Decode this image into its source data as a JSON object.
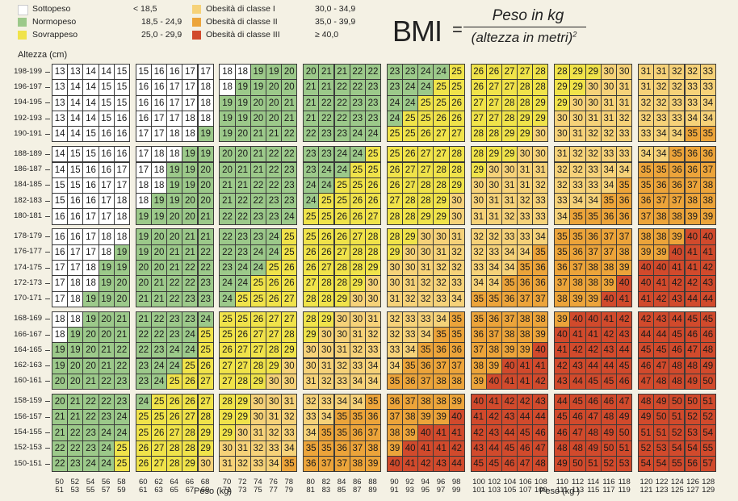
{
  "legend": [
    {
      "label": "Sottopeso",
      "range": "< 18,5",
      "color": "#ffffff"
    },
    {
      "label": "Normopeso",
      "range": "18,5 - 24,9",
      "color": "#9cc98a"
    },
    {
      "label": "Sovrappeso",
      "range": "25,0 - 29,9",
      "color": "#f0e34a"
    },
    {
      "label": "Obesità di classe I",
      "range": "30,0 - 34,9",
      "color": "#f6d279"
    },
    {
      "label": "Obesità di classe II",
      "range": "35,0 - 39,9",
      "color": "#eca43a"
    },
    {
      "label": "Obesità di classe III",
      "range": "≥ 40,0",
      "color": "#d14a2c"
    }
  ],
  "formula": {
    "bmi": "BMI",
    "equals": "=",
    "numerator": "Peso in kg",
    "denominator": "(altezza in metri)",
    "exponent": "2"
  },
  "chart_data": {
    "type": "heatmap",
    "ylabel": "Altezza (cm)",
    "xlabel_left": "Peso (kg)",
    "xlabel_right": "Peso (kg )",
    "row_labels": [
      "198-199",
      "196-197",
      "194-195",
      "192-193",
      "190-191",
      "188-189",
      "186-187",
      "184-185",
      "182-183",
      "180-181",
      "178-179",
      "176-177",
      "174-175",
      "172-173",
      "170-171",
      "168-169",
      "166-167",
      "164-165",
      "162-163",
      "160-161",
      "158-159",
      "156-157",
      "154-155",
      "152-153",
      "150-151"
    ],
    "col_labels_top": [
      "50",
      "52",
      "54",
      "56",
      "58",
      "60",
      "62",
      "64",
      "66",
      "68",
      "70",
      "72",
      "74",
      "76",
      "78",
      "80",
      "82",
      "84",
      "86",
      "88",
      "90",
      "92",
      "94",
      "96",
      "98",
      "100",
      "102",
      "104",
      "106",
      "108",
      "110",
      "112",
      "114",
      "116",
      "118",
      "120",
      "122",
      "124",
      "126",
      "128"
    ],
    "col_labels_bottom": [
      "51",
      "53",
      "55",
      "57",
      "59",
      "61",
      "63",
      "65",
      "67",
      "69",
      "71",
      "73",
      "75",
      "77",
      "79",
      "81",
      "83",
      "85",
      "87",
      "89",
      "91",
      "93",
      "95",
      "97",
      "99",
      "101",
      "103",
      "105",
      "107",
      "109",
      "111",
      "113",
      "115",
      "117",
      "119",
      "121",
      "123",
      "125",
      "127",
      "129"
    ],
    "bmi_categories": [
      {
        "name": "Sottopeso",
        "max": 18.5
      },
      {
        "name": "Normopeso",
        "max": 25
      },
      {
        "name": "Sovrappeso",
        "max": 30
      },
      {
        "name": "Obesità di classe I",
        "max": 35
      },
      {
        "name": "Obesità di classe II",
        "max": 40
      },
      {
        "name": "Obesità di classe III",
        "max": null
      }
    ],
    "values": [
      [
        13,
        13,
        14,
        14,
        15,
        15,
        16,
        16,
        17,
        17,
        18,
        18,
        19,
        19,
        20,
        20,
        21,
        21,
        22,
        22,
        23,
        23,
        24,
        24,
        25,
        26,
        26,
        27,
        27,
        28,
        28,
        29,
        29,
        30,
        30,
        31,
        31,
        32,
        32,
        33
      ],
      [
        13,
        14,
        14,
        15,
        15,
        16,
        16,
        17,
        17,
        18,
        18,
        19,
        19,
        20,
        20,
        21,
        21,
        22,
        22,
        23,
        23,
        24,
        24,
        25,
        25,
        26,
        27,
        27,
        28,
        28,
        29,
        29,
        30,
        30,
        31,
        31,
        32,
        32,
        33,
        33
      ],
      [
        13,
        14,
        14,
        15,
        15,
        16,
        16,
        17,
        17,
        18,
        19,
        19,
        20,
        20,
        21,
        21,
        22,
        22,
        23,
        23,
        24,
        24,
        25,
        25,
        26,
        27,
        27,
        28,
        28,
        29,
        29,
        30,
        30,
        31,
        31,
        32,
        32,
        33,
        33,
        34
      ],
      [
        13,
        14,
        14,
        15,
        16,
        16,
        17,
        17,
        18,
        18,
        19,
        19,
        20,
        20,
        21,
        21,
        22,
        22,
        23,
        23,
        24,
        25,
        25,
        26,
        26,
        27,
        27,
        28,
        29,
        29,
        30,
        30,
        31,
        31,
        32,
        32,
        33,
        33,
        34,
        34
      ],
      [
        14,
        14,
        15,
        16,
        16,
        17,
        17,
        18,
        18,
        19,
        19,
        20,
        21,
        21,
        22,
        22,
        23,
        23,
        24,
        24,
        25,
        25,
        26,
        27,
        27,
        28,
        28,
        29,
        29,
        30,
        30,
        31,
        32,
        32,
        33,
        33,
        34,
        34,
        35,
        35
      ],
      [
        14,
        15,
        15,
        16,
        16,
        17,
        18,
        18,
        19,
        19,
        20,
        20,
        21,
        22,
        22,
        23,
        23,
        24,
        24,
        25,
        25,
        26,
        27,
        27,
        28,
        28,
        29,
        29,
        30,
        30,
        31,
        32,
        32,
        33,
        33,
        34,
        34,
        35,
        36,
        36
      ],
      [
        14,
        15,
        16,
        16,
        17,
        17,
        18,
        19,
        19,
        20,
        20,
        21,
        21,
        22,
        23,
        23,
        24,
        24,
        25,
        25,
        26,
        27,
        27,
        28,
        28,
        29,
        30,
        30,
        31,
        31,
        32,
        32,
        33,
        34,
        34,
        35,
        35,
        36,
        36,
        37
      ],
      [
        15,
        15,
        16,
        17,
        17,
        18,
        18,
        19,
        19,
        20,
        21,
        21,
        22,
        22,
        23,
        24,
        24,
        25,
        25,
        26,
        26,
        27,
        28,
        28,
        29,
        30,
        30,
        31,
        31,
        32,
        32,
        33,
        33,
        34,
        35,
        35,
        36,
        36,
        37,
        38
      ],
      [
        15,
        16,
        16,
        17,
        18,
        18,
        19,
        19,
        20,
        20,
        21,
        22,
        22,
        23,
        23,
        24,
        25,
        25,
        26,
        26,
        27,
        28,
        28,
        29,
        30,
        30,
        31,
        31,
        32,
        33,
        33,
        34,
        34,
        35,
        36,
        36,
        37,
        37,
        38,
        38
      ],
      [
        16,
        16,
        17,
        17,
        18,
        19,
        19,
        20,
        20,
        21,
        22,
        22,
        23,
        23,
        24,
        25,
        25,
        26,
        26,
        27,
        28,
        28,
        29,
        29,
        30,
        31,
        31,
        32,
        33,
        33,
        34,
        35,
        35,
        36,
        36,
        37,
        38,
        38,
        39,
        39
      ],
      [
        16,
        16,
        17,
        18,
        18,
        19,
        20,
        20,
        21,
        21,
        22,
        23,
        23,
        24,
        25,
        25,
        26,
        26,
        27,
        28,
        28,
        29,
        30,
        30,
        31,
        32,
        32,
        33,
        33,
        34,
        35,
        35,
        36,
        37,
        37,
        38,
        38,
        39,
        40,
        40
      ],
      [
        16,
        17,
        17,
        18,
        19,
        19,
        20,
        21,
        21,
        22,
        22,
        23,
        24,
        24,
        25,
        26,
        26,
        27,
        28,
        28,
        29,
        30,
        30,
        31,
        32,
        32,
        33,
        34,
        34,
        35,
        35,
        36,
        37,
        37,
        38,
        39,
        39,
        40,
        41,
        41
      ],
      [
        17,
        17,
        18,
        19,
        19,
        20,
        20,
        21,
        22,
        22,
        23,
        24,
        24,
        25,
        26,
        26,
        27,
        28,
        28,
        29,
        30,
        30,
        31,
        32,
        32,
        33,
        34,
        34,
        35,
        36,
        36,
        37,
        38,
        38,
        39,
        40,
        40,
        41,
        41,
        42
      ],
      [
        17,
        18,
        18,
        19,
        20,
        20,
        21,
        22,
        22,
        23,
        24,
        24,
        25,
        26,
        26,
        27,
        28,
        28,
        29,
        30,
        30,
        31,
        32,
        32,
        33,
        34,
        34,
        35,
        36,
        36,
        37,
        38,
        38,
        39,
        40,
        40,
        41,
        42,
        42,
        43
      ],
      [
        17,
        18,
        19,
        19,
        20,
        21,
        21,
        22,
        23,
        23,
        24,
        25,
        25,
        26,
        27,
        28,
        28,
        29,
        30,
        30,
        31,
        32,
        32,
        33,
        34,
        35,
        35,
        36,
        37,
        37,
        38,
        39,
        39,
        40,
        41,
        41,
        42,
        43,
        44,
        44
      ],
      [
        18,
        18,
        19,
        20,
        21,
        21,
        22,
        23,
        23,
        24,
        25,
        25,
        26,
        27,
        27,
        28,
        29,
        30,
        30,
        31,
        32,
        33,
        33,
        34,
        35,
        35,
        36,
        37,
        38,
        38,
        39,
        40,
        40,
        41,
        42,
        42,
        43,
        44,
        45,
        45
      ],
      [
        18,
        19,
        20,
        20,
        21,
        22,
        22,
        23,
        24,
        25,
        25,
        26,
        27,
        27,
        28,
        29,
        30,
        30,
        31,
        32,
        32,
        33,
        34,
        35,
        35,
        36,
        37,
        38,
        38,
        39,
        40,
        41,
        41,
        42,
        43,
        44,
        44,
        45,
        46,
        46
      ],
      [
        19,
        19,
        20,
        21,
        22,
        22,
        23,
        24,
        24,
        25,
        26,
        27,
        27,
        28,
        29,
        30,
        30,
        31,
        32,
        33,
        33,
        34,
        35,
        36,
        36,
        37,
        38,
        39,
        39,
        40,
        41,
        42,
        42,
        43,
        44,
        45,
        45,
        46,
        47,
        48
      ],
      [
        19,
        20,
        20,
        21,
        22,
        23,
        24,
        24,
        25,
        26,
        27,
        27,
        28,
        29,
        30,
        30,
        31,
        32,
        33,
        34,
        34,
        35,
        36,
        37,
        37,
        38,
        39,
        40,
        41,
        41,
        42,
        43,
        44,
        44,
        45,
        46,
        47,
        48,
        48,
        49
      ],
      [
        20,
        20,
        21,
        22,
        23,
        23,
        24,
        25,
        26,
        27,
        27,
        28,
        29,
        30,
        30,
        31,
        32,
        33,
        34,
        34,
        35,
        36,
        37,
        38,
        38,
        39,
        40,
        41,
        41,
        42,
        43,
        44,
        45,
        45,
        46,
        47,
        48,
        48,
        49,
        50
      ],
      [
        20,
        21,
        22,
        22,
        23,
        24,
        25,
        26,
        26,
        27,
        28,
        29,
        30,
        30,
        31,
        32,
        33,
        34,
        34,
        35,
        36,
        37,
        38,
        38,
        39,
        40,
        41,
        42,
        42,
        43,
        44,
        45,
        46,
        46,
        47,
        48,
        49,
        50,
        50,
        51
      ],
      [
        21,
        21,
        22,
        23,
        24,
        25,
        25,
        26,
        27,
        28,
        29,
        29,
        30,
        31,
        32,
        33,
        34,
        35,
        35,
        36,
        37,
        38,
        39,
        39,
        40,
        41,
        42,
        43,
        44,
        44,
        45,
        46,
        47,
        48,
        49,
        49,
        50,
        51,
        52,
        52
      ],
      [
        21,
        22,
        23,
        24,
        24,
        25,
        26,
        27,
        28,
        29,
        29,
        30,
        31,
        32,
        33,
        34,
        35,
        35,
        36,
        37,
        38,
        39,
        40,
        41,
        41,
        42,
        43,
        44,
        45,
        46,
        46,
        47,
        48,
        49,
        50,
        51,
        51,
        52,
        53,
        54
      ],
      [
        22,
        22,
        23,
        24,
        25,
        26,
        27,
        28,
        28,
        29,
        30,
        31,
        32,
        33,
        34,
        35,
        35,
        36,
        37,
        38,
        39,
        40,
        41,
        41,
        42,
        43,
        44,
        45,
        46,
        47,
        48,
        48,
        49,
        50,
        51,
        52,
        53,
        54,
        54,
        55
      ],
      [
        22,
        23,
        24,
        24,
        25,
        26,
        27,
        28,
        29,
        30,
        31,
        32,
        33,
        34,
        35,
        36,
        37,
        37,
        38,
        39,
        40,
        41,
        42,
        43,
        44,
        45,
        45,
        46,
        47,
        48,
        49,
        50,
        51,
        52,
        53,
        54,
        54,
        55,
        56,
        57
      ]
    ]
  }
}
